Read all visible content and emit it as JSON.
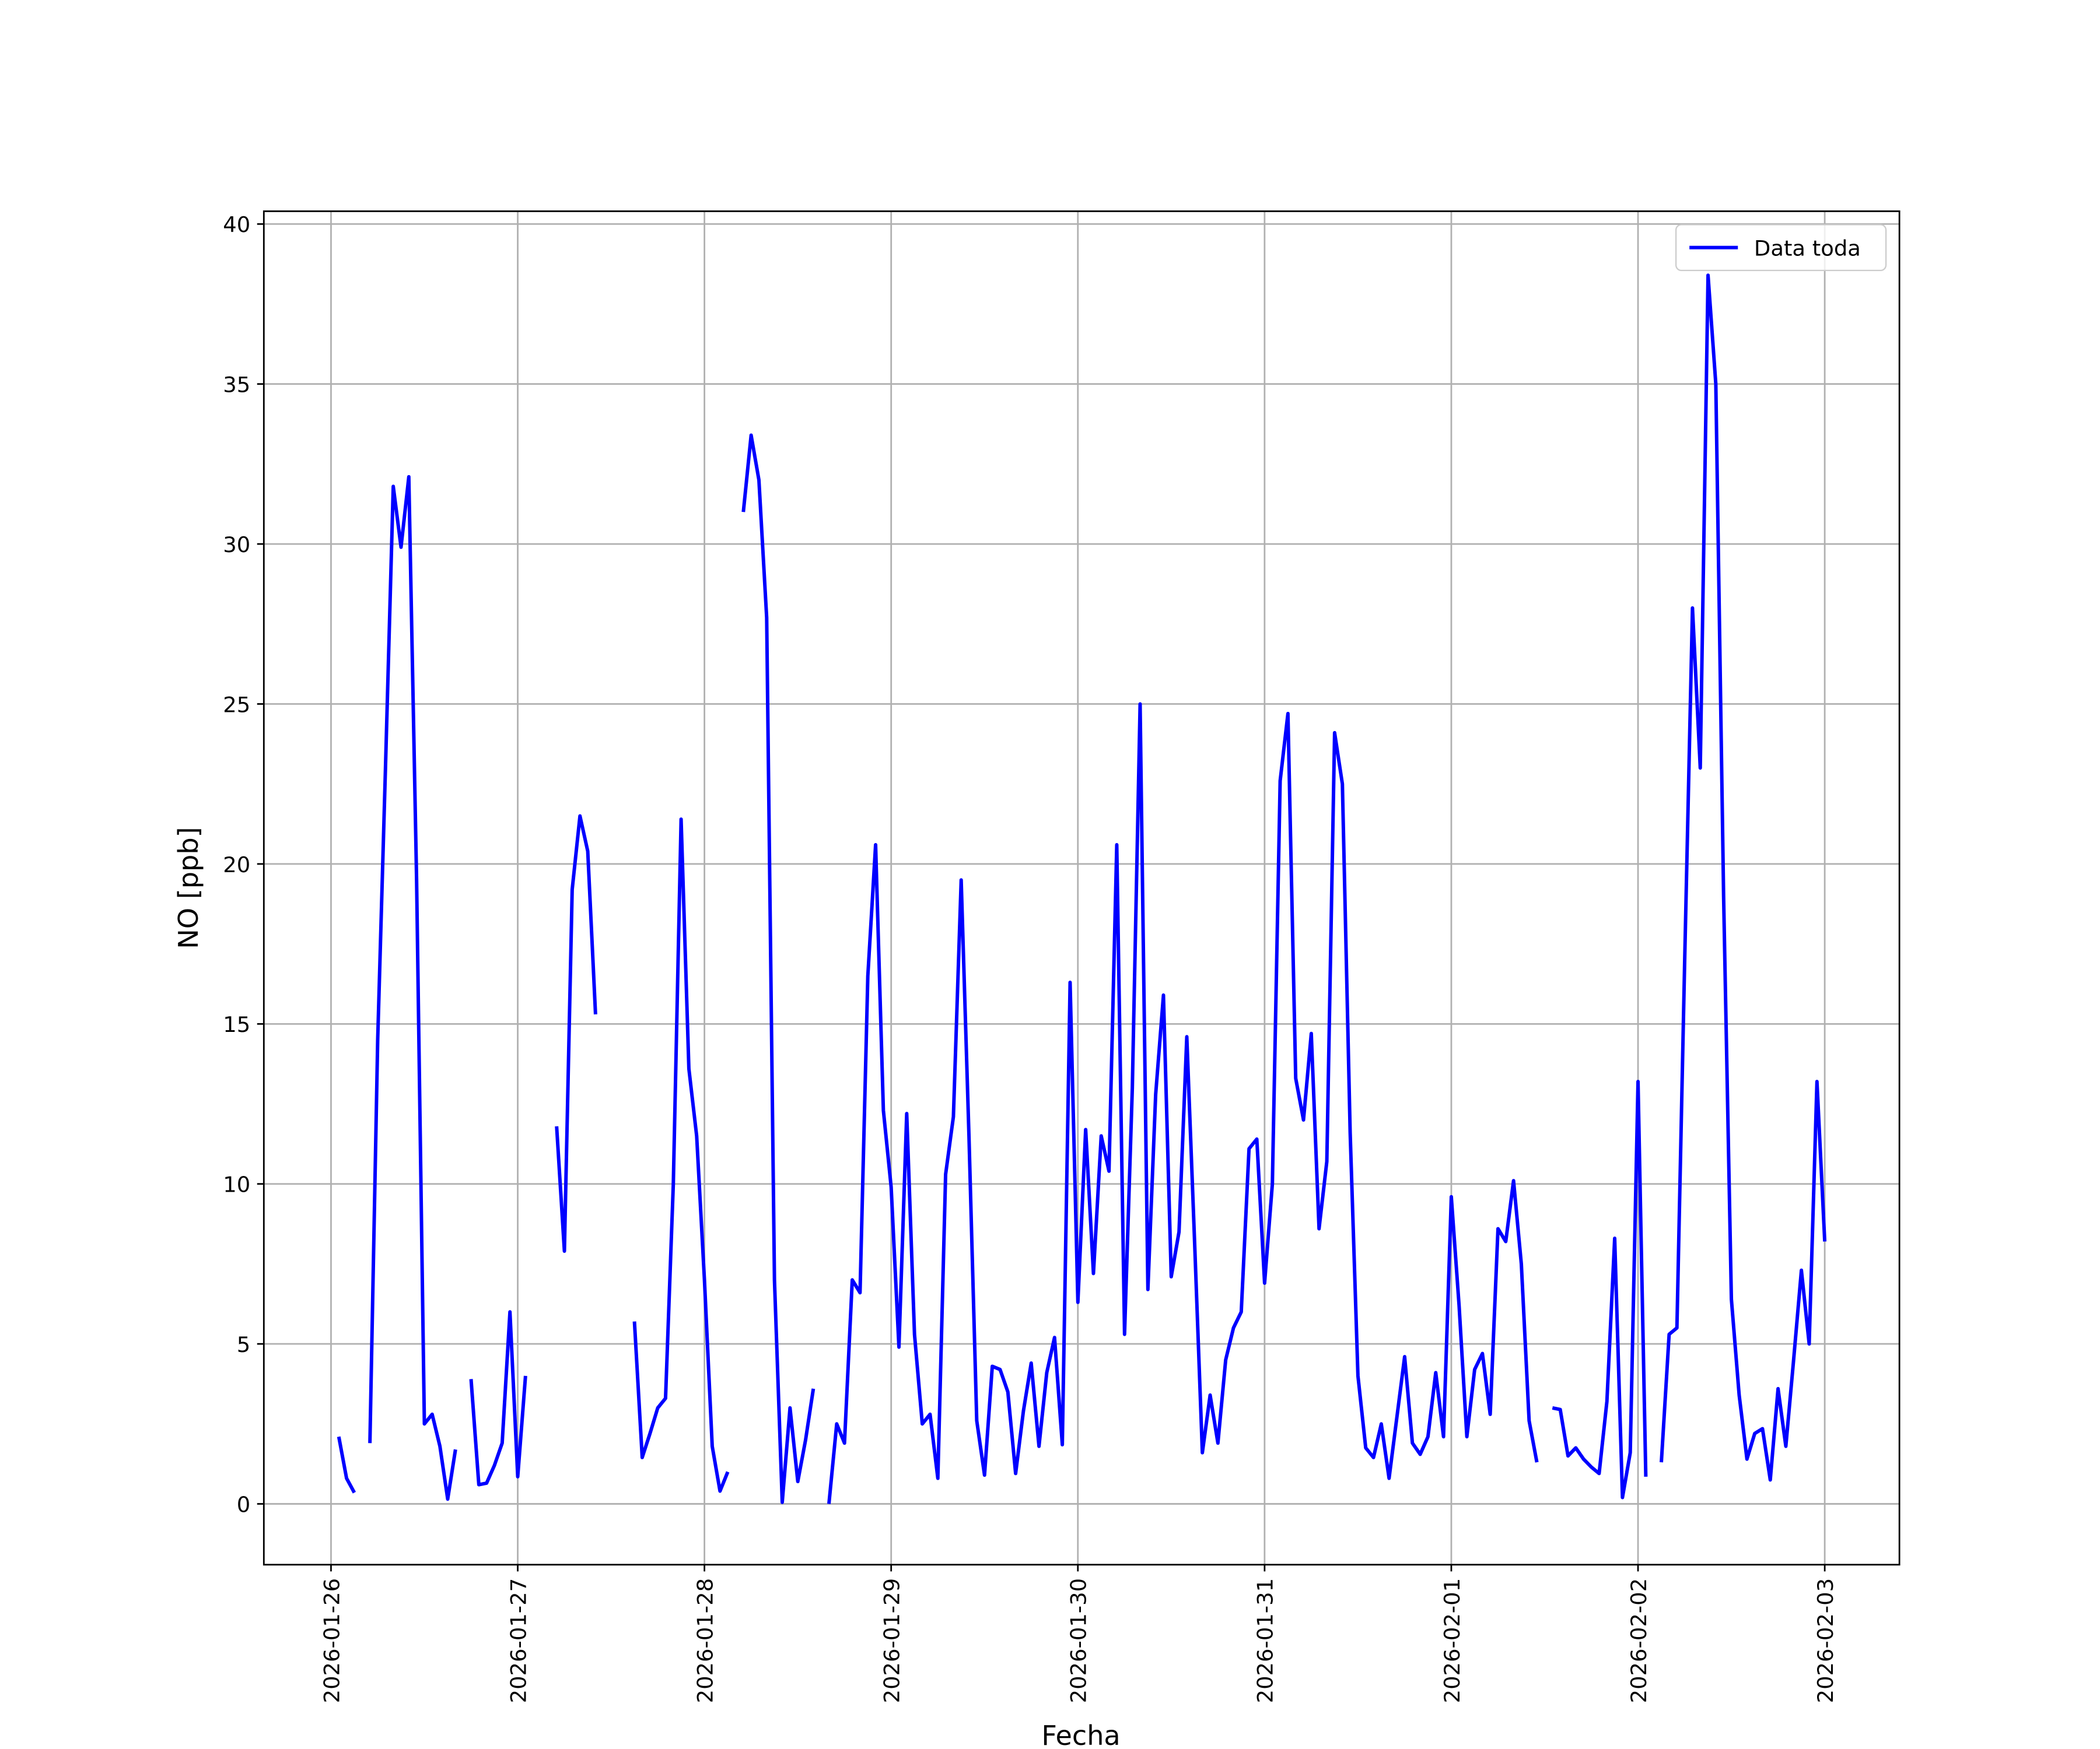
{
  "chart_data": {
    "type": "line",
    "xlabel": "Fecha",
    "ylabel": "NO [ppb]",
    "x": [
      "2026-01-26T01:00",
      "2026-01-26T02:00",
      "2026-01-26T03:00",
      "2026-01-26T04:00",
      "2026-01-26T05:00",
      "2026-01-26T06:00",
      "2026-01-26T07:00",
      "2026-01-26T08:00",
      "2026-01-26T09:00",
      "2026-01-26T10:00",
      "2026-01-26T11:00",
      "2026-01-26T12:00",
      "2026-01-26T13:00",
      "2026-01-26T14:00",
      "2026-01-26T15:00",
      "2026-01-26T16:00",
      "2026-01-26T17:00",
      "2026-01-26T18:00",
      "2026-01-26T19:00",
      "2026-01-26T20:00",
      "2026-01-26T21:00",
      "2026-01-26T22:00",
      "2026-01-26T23:00",
      "2026-01-27T00:00",
      "2026-01-27T01:00",
      "2026-01-27T02:00",
      "2026-01-27T03:00",
      "2026-01-27T04:00",
      "2026-01-27T05:00",
      "2026-01-27T06:00",
      "2026-01-27T07:00",
      "2026-01-27T08:00",
      "2026-01-27T09:00",
      "2026-01-27T10:00",
      "2026-01-27T11:00",
      "2026-01-27T12:00",
      "2026-01-27T13:00",
      "2026-01-27T14:00",
      "2026-01-27T15:00",
      "2026-01-27T16:00",
      "2026-01-27T17:00",
      "2026-01-27T18:00",
      "2026-01-27T19:00",
      "2026-01-27T20:00",
      "2026-01-27T21:00",
      "2026-01-27T22:00",
      "2026-01-27T23:00",
      "2026-01-28T00:00",
      "2026-01-28T01:00",
      "2026-01-28T02:00",
      "2026-01-28T03:00",
      "2026-01-28T04:00",
      "2026-01-28T05:00",
      "2026-01-28T06:00",
      "2026-01-28T07:00",
      "2026-01-28T08:00",
      "2026-01-28T09:00",
      "2026-01-28T10:00",
      "2026-01-28T11:00",
      "2026-01-28T12:00",
      "2026-01-28T13:00",
      "2026-01-28T14:00",
      "2026-01-28T15:00",
      "2026-01-28T16:00",
      "2026-01-28T17:00",
      "2026-01-28T18:00",
      "2026-01-28T19:00",
      "2026-01-28T20:00",
      "2026-01-28T21:00",
      "2026-01-28T22:00",
      "2026-01-28T23:00",
      "2026-01-29T00:00",
      "2026-01-29T01:00",
      "2026-01-29T02:00",
      "2026-01-29T03:00",
      "2026-01-29T04:00",
      "2026-01-29T05:00",
      "2026-01-29T06:00",
      "2026-01-29T07:00",
      "2026-01-29T08:00",
      "2026-01-29T09:00",
      "2026-01-29T10:00",
      "2026-01-29T11:00",
      "2026-01-29T12:00",
      "2026-01-29T13:00",
      "2026-01-29T14:00",
      "2026-01-29T15:00",
      "2026-01-29T16:00",
      "2026-01-29T17:00",
      "2026-01-29T18:00",
      "2026-01-29T19:00",
      "2026-01-29T20:00",
      "2026-01-29T21:00",
      "2026-01-29T22:00",
      "2026-01-29T23:00",
      "2026-01-30T00:00",
      "2026-01-30T01:00",
      "2026-01-30T02:00",
      "2026-01-30T03:00",
      "2026-01-30T04:00",
      "2026-01-30T05:00",
      "2026-01-30T06:00",
      "2026-01-30T07:00",
      "2026-01-30T08:00",
      "2026-01-30T09:00",
      "2026-01-30T10:00",
      "2026-01-30T11:00",
      "2026-01-30T12:00",
      "2026-01-30T13:00",
      "2026-01-30T14:00",
      "2026-01-30T15:00",
      "2026-01-30T16:00",
      "2026-01-30T17:00",
      "2026-01-30T18:00",
      "2026-01-30T19:00",
      "2026-01-30T20:00",
      "2026-01-30T21:00",
      "2026-01-30T22:00",
      "2026-01-30T23:00",
      "2026-01-31T00:00",
      "2026-01-31T01:00",
      "2026-01-31T02:00",
      "2026-01-31T03:00",
      "2026-01-31T04:00",
      "2026-01-31T05:00",
      "2026-01-31T06:00",
      "2026-01-31T07:00",
      "2026-01-31T08:00",
      "2026-01-31T09:00",
      "2026-01-31T10:00",
      "2026-01-31T11:00",
      "2026-01-31T12:00",
      "2026-01-31T13:00",
      "2026-01-31T14:00",
      "2026-01-31T15:00",
      "2026-01-31T16:00",
      "2026-01-31T17:00",
      "2026-01-31T18:00",
      "2026-01-31T19:00",
      "2026-01-31T20:00",
      "2026-01-31T21:00",
      "2026-01-31T22:00",
      "2026-01-31T23:00",
      "2026-02-01T00:00",
      "2026-02-01T01:00",
      "2026-02-01T02:00",
      "2026-02-01T03:00",
      "2026-02-01T04:00",
      "2026-02-01T05:00",
      "2026-02-01T06:00",
      "2026-02-01T07:00",
      "2026-02-01T08:00",
      "2026-02-01T09:00",
      "2026-02-01T10:00",
      "2026-02-01T11:00",
      "2026-02-01T12:00",
      "2026-02-01T13:00",
      "2026-02-01T14:00",
      "2026-02-01T15:00",
      "2026-02-01T16:00",
      "2026-02-01T17:00",
      "2026-02-01T18:00",
      "2026-02-01T19:00",
      "2026-02-01T20:00",
      "2026-02-01T21:00",
      "2026-02-01T22:00",
      "2026-02-01T23:00",
      "2026-02-02T00:00",
      "2026-02-02T01:00",
      "2026-02-02T02:00",
      "2026-02-02T03:00",
      "2026-02-02T04:00",
      "2026-02-02T05:00",
      "2026-02-02T06:00",
      "2026-02-02T07:00",
      "2026-02-02T08:00",
      "2026-02-02T09:00",
      "2026-02-02T10:00",
      "2026-02-02T11:00",
      "2026-02-02T12:00",
      "2026-02-02T13:00",
      "2026-02-02T14:00",
      "2026-02-02T15:00",
      "2026-02-02T16:00",
      "2026-02-02T17:00",
      "2026-02-02T18:00",
      "2026-02-02T19:00",
      "2026-02-02T20:00",
      "2026-02-02T21:00",
      "2026-02-02T22:00",
      "2026-02-02T23:00",
      "2026-02-03T00:00"
    ],
    "series": [
      {
        "name": "Data toda",
        "color": "#0000ff",
        "values": [
          2.1,
          0.8,
          0.35,
          null,
          1.9,
          14.5,
          23,
          31.8,
          29.9,
          32.1,
          19.5,
          2.5,
          2.8,
          1.8,
          0.15,
          1.7,
          null,
          3.9,
          0.6,
          0.65,
          1.2,
          1.9,
          6.0,
          0.85,
          4.0,
          null,
          null,
          null,
          11.8,
          7.9,
          19.2,
          21.5,
          20.4,
          15.3,
          null,
          null,
          null,
          null,
          5.7,
          1.45,
          2.2,
          3.0,
          3.3,
          10,
          21.4,
          13.6,
          11.5,
          7,
          1.8,
          0.4,
          1.0,
          null,
          31,
          33.4,
          32,
          27.7,
          7,
          0.05,
          3.0,
          0.7,
          2.0,
          3.6,
          null,
          0,
          2.5,
          1.9,
          7.0,
          6.6,
          16.5,
          20.6,
          12.3,
          9.9,
          4.9,
          12.2,
          5.3,
          2.5,
          2.8,
          0.8,
          10.3,
          12.1,
          19.5,
          11.5,
          2.6,
          0.9,
          4.3,
          4.2,
          3.5,
          0.95,
          2.9,
          4.4,
          1.8,
          4.1,
          5.2,
          1.85,
          16.3,
          6.3,
          11.7,
          7.2,
          11.5,
          10.4,
          20.6,
          5.3,
          13,
          25,
          6.7,
          12.8,
          15.9,
          7.1,
          8.5,
          14.6,
          8.2,
          1.6,
          3.4,
          1.9,
          4.5,
          5.5,
          6.0,
          11.1,
          11.4,
          6.9,
          10,
          22.6,
          24.7,
          13.3,
          12.0,
          14.7,
          8.6,
          10.7,
          24.1,
          22.5,
          11.6,
          4.0,
          1.75,
          1.45,
          2.5,
          0.8,
          2.7,
          4.6,
          1.9,
          1.55,
          2.1,
          4.1,
          2.1,
          9.6,
          6.2,
          2.1,
          4.2,
          4.7,
          2.8,
          8.6,
          8.2,
          10.1,
          7.5,
          2.6,
          1.3,
          null,
          3.0,
          2.95,
          1.5,
          1.75,
          1.4,
          1.15,
          0.95,
          3.2,
          8.3,
          0.2,
          1.6,
          13.2,
          0.85,
          null,
          1.3,
          5.3,
          5.5,
          17,
          28,
          23,
          38.4,
          35,
          19,
          6.4,
          3.4,
          1.4,
          2.2,
          2.35,
          0.75,
          3.6,
          1.8,
          4.5,
          7.3,
          5.0,
          13.2,
          8.2
        ]
      }
    ],
    "xlim": [
      "2026-01-25T15:22",
      "2026-02-03T09:36"
    ],
    "xticks": [
      "2026-01-26",
      "2026-01-27",
      "2026-01-28",
      "2026-01-29",
      "2026-01-30",
      "2026-01-31",
      "2026-02-01",
      "2026-02-02",
      "2026-02-03"
    ],
    "ylim": [
      -1.9,
      40.4
    ],
    "yticks": [
      0,
      5,
      10,
      15,
      20,
      25,
      30,
      35,
      40
    ],
    "grid": true,
    "legend": "upper right"
  }
}
